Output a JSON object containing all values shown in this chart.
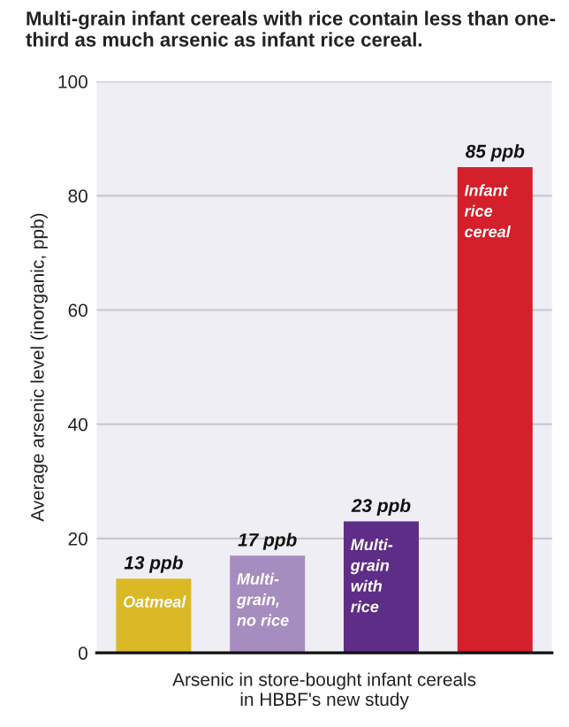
{
  "chart_data": {
    "type": "bar",
    "title": "Multi-grain infant cereals with rice contain less than one-\nthird as much arsenic as infant rice cereal.",
    "xlabel": "Arsenic in store-bought infant cereals\nin HBBF's new study",
    "ylabel": "Average arsenic level (inorganic, ppb)",
    "categories": [
      "Oatmeal",
      "Multi-\ngrain,\nno rice",
      "Multi-\ngrain\nwith\nrice",
      "Infant\nrice\ncereal"
    ],
    "values": [
      13,
      17,
      23,
      85
    ],
    "colors": [
      "#dbb826",
      "#a68dc0",
      "#5e2d88",
      "#d3202a"
    ],
    "value_labels": [
      "13 ppb",
      "17 ppb",
      "23 ppb",
      "85 ppb"
    ],
    "ylim": [
      0,
      100
    ],
    "yticks": [
      0,
      20,
      40,
      60,
      80,
      100
    ],
    "grid": "y",
    "legend": false
  }
}
